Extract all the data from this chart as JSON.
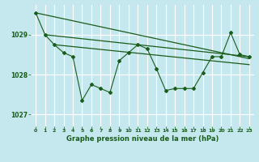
{
  "title": "Graphe pression niveau de la mer (hPa)",
  "bg_color": "#c5e8ef",
  "grid_color": "#ffffff",
  "line_color": "#1a5c1a",
  "xlim": [
    -0.5,
    23.5
  ],
  "ylim": [
    1026.7,
    1029.75
  ],
  "yticks": [
    1027,
    1028,
    1029
  ],
  "xticks": [
    0,
    1,
    2,
    3,
    4,
    5,
    6,
    7,
    8,
    9,
    10,
    11,
    12,
    13,
    14,
    15,
    16,
    17,
    18,
    19,
    20,
    21,
    22,
    23
  ],
  "series1_x": [
    0,
    1,
    2,
    3,
    4,
    5,
    6,
    7,
    8,
    9,
    10,
    11,
    12,
    13,
    14,
    15,
    16,
    17,
    18,
    19,
    20,
    21,
    22,
    23
  ],
  "series1_y": [
    1029.55,
    1029.0,
    1028.75,
    1028.55,
    1028.45,
    1027.35,
    1027.75,
    1027.65,
    1027.55,
    1028.35,
    1028.55,
    1028.75,
    1028.65,
    1028.15,
    1027.6,
    1027.65,
    1027.65,
    1027.65,
    1028.05,
    1028.45,
    1028.45,
    1029.05,
    1028.5,
    1028.45
  ],
  "trend1_x": [
    0,
    23
  ],
  "trend1_y": [
    1029.55,
    1028.4
  ],
  "trend2_x": [
    1,
    23
  ],
  "trend2_y": [
    1029.0,
    1028.45
  ],
  "trend3_x": [
    2,
    23
  ],
  "trend3_y": [
    1028.75,
    1028.25
  ]
}
